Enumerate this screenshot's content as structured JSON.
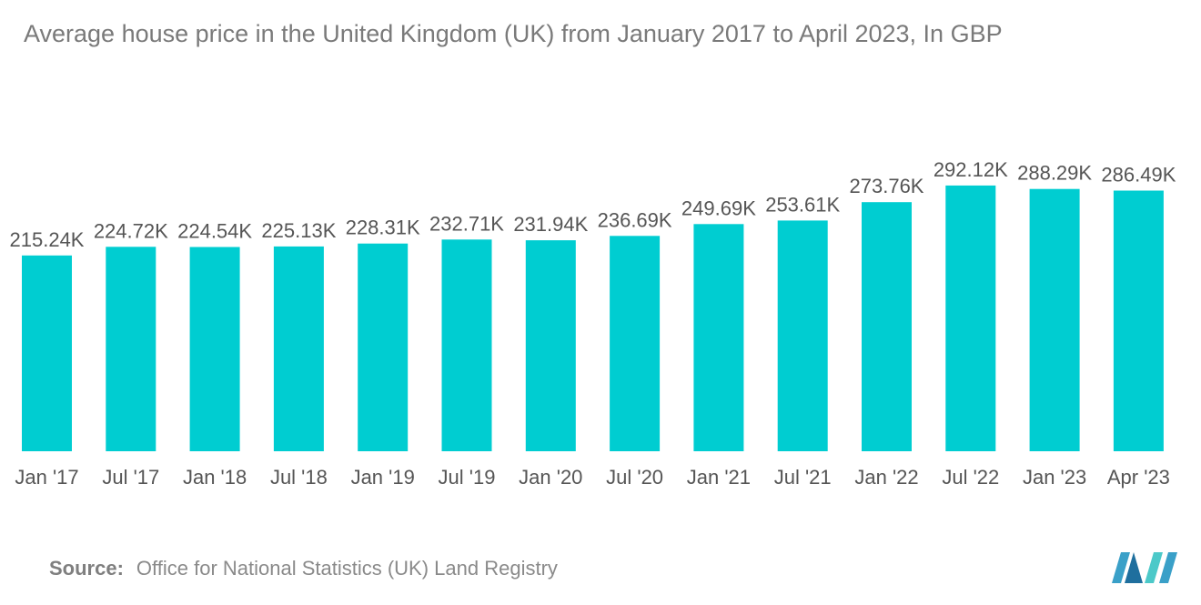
{
  "chart_data": {
    "type": "bar",
    "title": "Average house price in the United Kingdom (UK) from January 2017 to April 2023, In GBP",
    "xlabel": "",
    "ylabel": "",
    "ylim": [
      0,
      320
    ],
    "grid": false,
    "categories": [
      "Jan '17",
      "Jul '17",
      "Jan '18",
      "Jul '18",
      "Jan '19",
      "Jul '19",
      "Jan '20",
      "Jul '20",
      "Jan '21",
      "Jul '21",
      "Jan '22",
      "Jul '22",
      "Jan '23",
      "Apr '23"
    ],
    "values": [
      215.24,
      224.72,
      224.54,
      225.13,
      228.31,
      232.71,
      231.94,
      236.69,
      249.69,
      253.61,
      273.76,
      292.12,
      288.29,
      286.49
    ],
    "data_labels": [
      "215.24K",
      "224.72K",
      "224.54K",
      "225.13K",
      "228.31K",
      "232.71K",
      "231.94K",
      "236.69K",
      "249.69K",
      "253.61K",
      "273.76K",
      "292.12K",
      "288.29K",
      "286.49K"
    ],
    "bar_color": "#00cdd1"
  },
  "source": {
    "label": "Source:",
    "text": "Office for National Statistics (UK) Land Registry"
  },
  "logo_colors": [
    "#3aa0c8",
    "#1f6f9e",
    "#4cc9c9"
  ]
}
